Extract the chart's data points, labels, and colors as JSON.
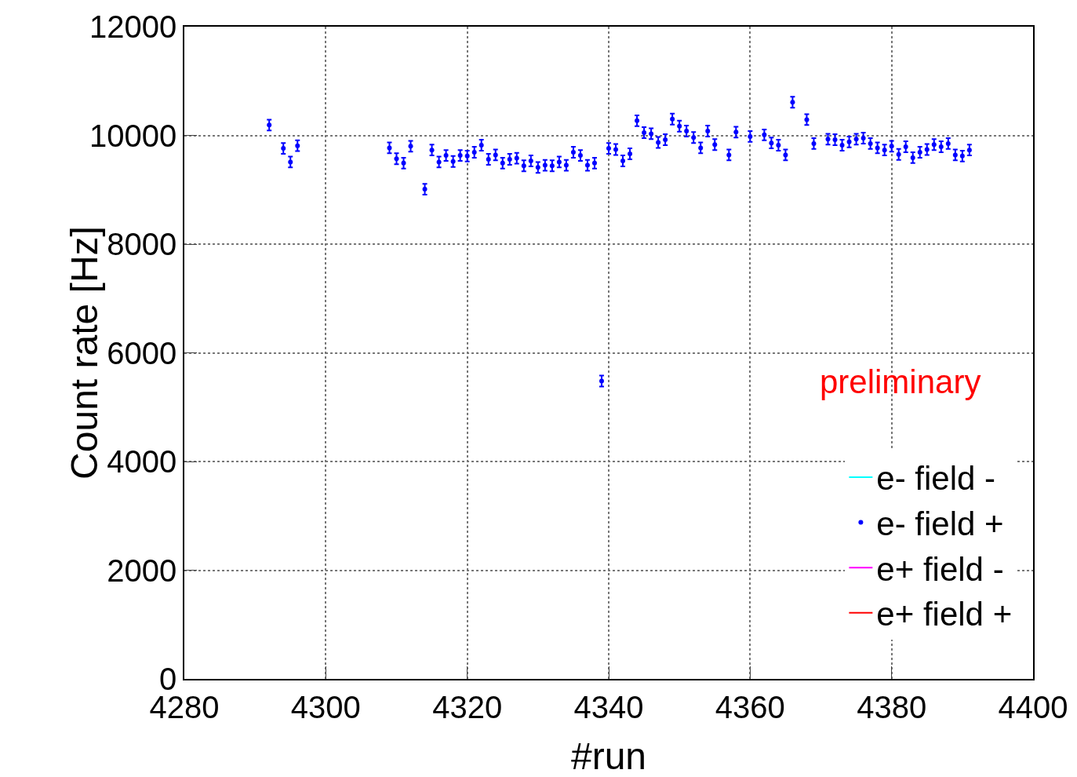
{
  "chart_data": {
    "type": "scatter",
    "xlabel": "#run",
    "ylabel": "Count rate [Hz]",
    "annotations": [
      "preliminary"
    ],
    "xlim": [
      4280,
      4400
    ],
    "xticks": [
      4280,
      4300,
      4320,
      4340,
      4360,
      4380,
      4400
    ],
    "ylim": [
      0,
      12000
    ],
    "yticks": [
      0,
      2000,
      4000,
      6000,
      8000,
      10000,
      12000
    ],
    "grid": true,
    "legend": "bottom right",
    "marker": "circle",
    "series": [
      {
        "name": "e- field -",
        "color": "#00ffff"
      },
      {
        "name": "e- field +",
        "color": "#0000ff",
        "x": [
          4292,
          4294,
          4295,
          4296,
          4309,
          4310,
          4311,
          4312,
          4314,
          4315,
          4316,
          4317,
          4318,
          4319,
          4320,
          4321,
          4322,
          4323,
          4324,
          4325,
          4326,
          4327,
          4328,
          4329,
          4330,
          4331,
          4332,
          4333,
          4334,
          4335,
          4336,
          4337,
          4338,
          4339,
          4340,
          4341,
          4342,
          4343,
          4344,
          4345,
          4346,
          4347,
          4348,
          4349,
          4350,
          4351,
          4352,
          4353,
          4354,
          4355,
          4357,
          4358,
          4360,
          4362,
          4363,
          4364,
          4365,
          4366,
          4368,
          4369,
          4371,
          4372,
          4373,
          4374,
          4375,
          4376,
          4377,
          4378,
          4379,
          4380,
          4381,
          4382,
          4383,
          4384,
          4385,
          4386,
          4387,
          4388,
          4389,
          4390,
          4391
        ],
        "values": [
          10190,
          9760,
          9510,
          9810,
          9770,
          9570,
          9490,
          9800,
          9010,
          9730,
          9510,
          9630,
          9520,
          9630,
          9620,
          9690,
          9820,
          9560,
          9640,
          9490,
          9560,
          9580,
          9440,
          9530,
          9410,
          9450,
          9440,
          9510,
          9450,
          9690,
          9630,
          9450,
          9490,
          5480,
          9760,
          9740,
          9530,
          9660,
          10270,
          10050,
          10030,
          9870,
          9920,
          10300,
          10170,
          10080,
          9960,
          9770,
          10080,
          9830,
          9640,
          10060,
          9980,
          10010,
          9860,
          9820,
          9640,
          10610,
          10290,
          9850,
          9930,
          9920,
          9820,
          9880,
          9930,
          9950,
          9850,
          9770,
          9730,
          9800,
          9650,
          9790,
          9590,
          9690,
          9740,
          9830,
          9790,
          9850,
          9640,
          9620,
          9730
        ],
        "errors": [
          100,
          100,
          100,
          100,
          100,
          100,
          100,
          100,
          100,
          100,
          100,
          100,
          100,
          100,
          100,
          100,
          100,
          100,
          100,
          100,
          100,
          100,
          100,
          100,
          100,
          100,
          100,
          100,
          100,
          100,
          100,
          100,
          100,
          100,
          100,
          100,
          100,
          100,
          100,
          100,
          100,
          100,
          100,
          100,
          100,
          100,
          100,
          100,
          100,
          100,
          100,
          100,
          100,
          100,
          100,
          100,
          100,
          100,
          100,
          100,
          100,
          100,
          100,
          100,
          100,
          100,
          100,
          100,
          100,
          100,
          100,
          100,
          100,
          100,
          100,
          100,
          100,
          100,
          100,
          100,
          100
        ]
      },
      {
        "name": "e+ field -",
        "color": "#ff00ff"
      },
      {
        "name": "e+ field +",
        "color": "#ff0000"
      }
    ]
  }
}
